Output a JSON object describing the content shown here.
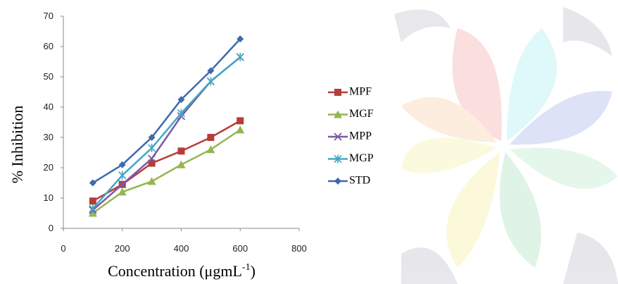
{
  "chart_data": {
    "type": "line",
    "ylabel": "% Inhibition",
    "xlabel": [
      "Concentration (μgmL",
      "-1",
      ")"
    ],
    "x": [
      100,
      200,
      300,
      400,
      500,
      600
    ],
    "xlim": [
      0,
      800
    ],
    "xticks": [
      0,
      200,
      400,
      600,
      800
    ],
    "ylim": [
      0,
      70
    ],
    "yticks": [
      0,
      10,
      20,
      30,
      40,
      50,
      60,
      70
    ],
    "legend": "right",
    "series": [
      {
        "name": "MPF",
        "color": "#b83c38",
        "marker": "square",
        "values": [
          9,
          14.5,
          21.5,
          25.5,
          30,
          35.5
        ]
      },
      {
        "name": "MGF",
        "color": "#94b64f",
        "marker": "triangle",
        "values": [
          5,
          12,
          15.5,
          21,
          26,
          32.5
        ]
      },
      {
        "name": "MPP",
        "color": "#7b5aa6",
        "marker": "x",
        "values": [
          6,
          14.5,
          23,
          37,
          48.5,
          56.5
        ]
      },
      {
        "name": "MGP",
        "color": "#41a7c4",
        "marker": "asterisk",
        "values": [
          6.5,
          17.5,
          26.5,
          38,
          48.5,
          56.5
        ]
      },
      {
        "name": "STD",
        "color": "#3f6aad",
        "marker": "diamond",
        "values": [
          15,
          21,
          30,
          42.5,
          52,
          62.5
        ]
      }
    ]
  }
}
